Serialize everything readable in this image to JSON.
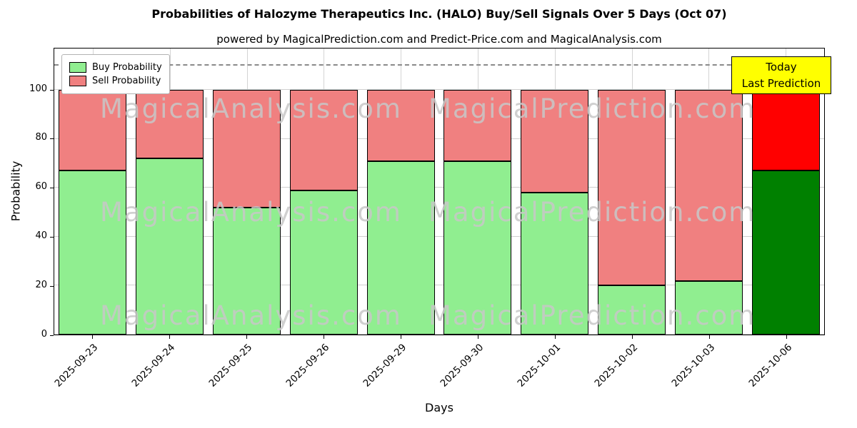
{
  "chart_data": {
    "type": "bar",
    "stacked": true,
    "title": "Probabilities of Halozyme Therapeutics Inc. (HALO) Buy/Sell Signals Over 5 Days (Oct 07)",
    "subtitle": "powered by MagicalPrediction.com and Predict-Price.com and MagicalAnalysis.com",
    "xlabel": "Days",
    "ylabel": "Probability",
    "categories": [
      "2025-09-23",
      "2025-09-24",
      "2025-09-25",
      "2025-09-26",
      "2025-09-29",
      "2025-09-30",
      "2025-10-01",
      "2025-10-02",
      "2025-10-03",
      "2025-10-06"
    ],
    "series": [
      {
        "name": "Buy Probability",
        "color": "#90ee90",
        "values": [
          67,
          72,
          52,
          59,
          71,
          71,
          58,
          20,
          22,
          67
        ]
      },
      {
        "name": "Sell Probability",
        "color": "#f08080",
        "values": [
          33,
          28,
          48,
          41,
          29,
          29,
          42,
          80,
          78,
          33
        ]
      }
    ],
    "today_bar": {
      "category": "2025-10-06",
      "buy_color": "#008000",
      "sell_color": "#ff0000"
    },
    "yticks": [
      0,
      20,
      40,
      60,
      80,
      100
    ],
    "ylim": [
      0,
      117
    ],
    "dashed_line_y": 110,
    "grid": true,
    "legend_position": "upper left",
    "annotation": {
      "lines": [
        "Today",
        "Last Prediction"
      ],
      "bg_color": "#ffff00"
    },
    "watermarks": [
      "MagicalAnalysis.com",
      "MagicalPrediction.com"
    ]
  }
}
